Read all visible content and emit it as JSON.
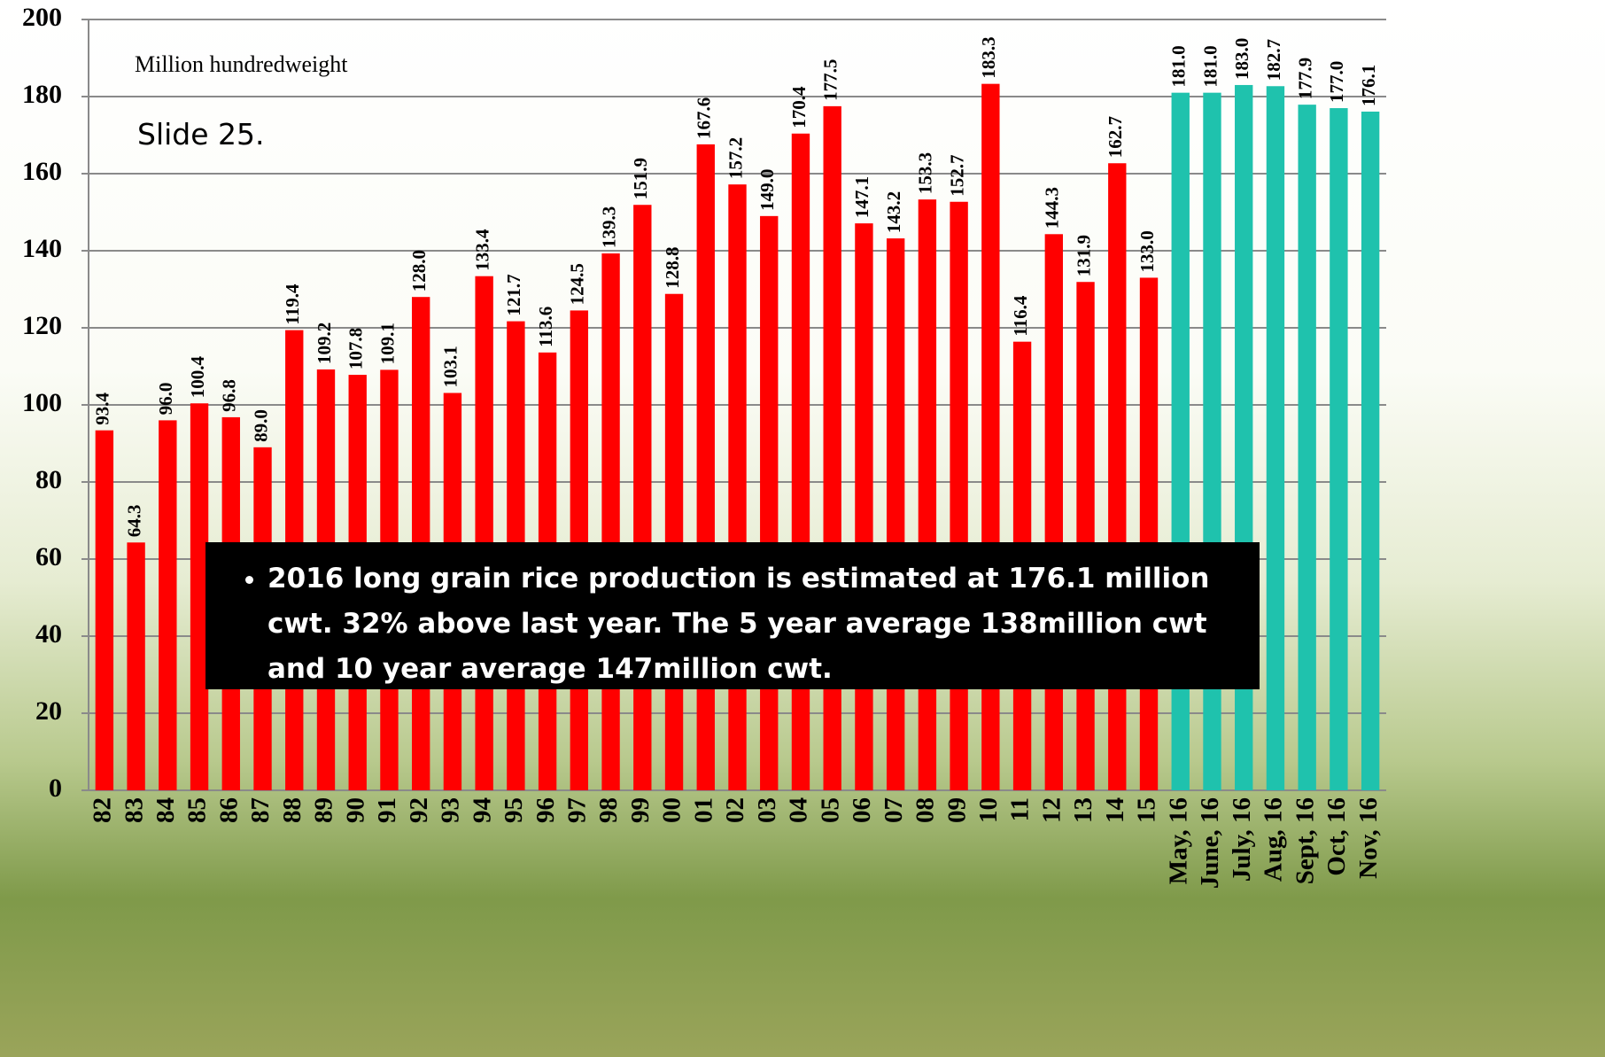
{
  "chart_data": {
    "type": "bar",
    "unit_label": "Million hundredweight",
    "slide_label": "Slide 25.",
    "annotation": "2016 long grain rice production is estimated at 176.1 million cwt. 32% above last year. The 5 year average 138million cwt and 10 year average 147million cwt.",
    "categories": [
      "82",
      "83",
      "84",
      "85",
      "86",
      "87",
      "88",
      "89",
      "90",
      "91",
      "92",
      "93",
      "94",
      "95",
      "96",
      "97",
      "98",
      "99",
      "00",
      "01",
      "02",
      "03",
      "04",
      "05",
      "06",
      "07",
      "08",
      "09",
      "10",
      "11",
      "12",
      "13",
      "14",
      "15",
      "May, 16",
      "June, 16",
      "July, 16",
      "Aug, 16",
      "Sept, 16",
      "Oct, 16",
      "Nov, 16"
    ],
    "values": [
      93.4,
      64.3,
      96.0,
      100.4,
      96.8,
      89.0,
      119.4,
      109.2,
      107.8,
      109.1,
      128.0,
      103.1,
      133.4,
      121.7,
      113.6,
      124.5,
      139.3,
      151.9,
      128.8,
      167.6,
      157.2,
      149.0,
      170.4,
      177.5,
      147.1,
      143.2,
      153.3,
      152.7,
      183.3,
      116.4,
      144.3,
      131.9,
      162.7,
      133.0,
      181.0,
      181.0,
      183.0,
      182.7,
      177.9,
      177.0,
      176.1
    ],
    "value_labels": [
      "93.4",
      "64.3",
      "96.0",
      "100.4",
      "96.8",
      "89.0",
      "119.4",
      "109.2",
      "107.8",
      "109.1",
      "128.0",
      "103.1",
      "133.4",
      "121.7",
      "113.6",
      "124.5",
      "139.3",
      "151.9",
      "128.8",
      "167.6",
      "157.2",
      "149.0",
      "170.4",
      "177.5",
      "147.1",
      "143.2",
      "153.3",
      "152.7",
      "183.3",
      "116.4",
      "144.3",
      "131.9",
      "162.7",
      "133.0",
      "181.0",
      "181.0",
      "183.0",
      "182.7",
      "177.9",
      "177.0",
      "176.1"
    ],
    "colors": [
      "#ff0000",
      "#ff0000",
      "#ff0000",
      "#ff0000",
      "#ff0000",
      "#ff0000",
      "#ff0000",
      "#ff0000",
      "#ff0000",
      "#ff0000",
      "#ff0000",
      "#ff0000",
      "#ff0000",
      "#ff0000",
      "#ff0000",
      "#ff0000",
      "#ff0000",
      "#ff0000",
      "#ff0000",
      "#ff0000",
      "#ff0000",
      "#ff0000",
      "#ff0000",
      "#ff0000",
      "#ff0000",
      "#ff0000",
      "#ff0000",
      "#ff0000",
      "#ff0000",
      "#ff0000",
      "#ff0000",
      "#ff0000",
      "#ff0000",
      "#ff0000",
      "#1fc2ad",
      "#1fc2ad",
      "#1fc2ad",
      "#1fc2ad",
      "#1fc2ad",
      "#1fc2ad",
      "#1fc2ad"
    ],
    "ylim": [
      0,
      200
    ],
    "yticks": [
      0,
      20,
      40,
      60,
      80,
      100,
      120,
      140,
      160,
      180,
      200
    ],
    "grid": true
  }
}
